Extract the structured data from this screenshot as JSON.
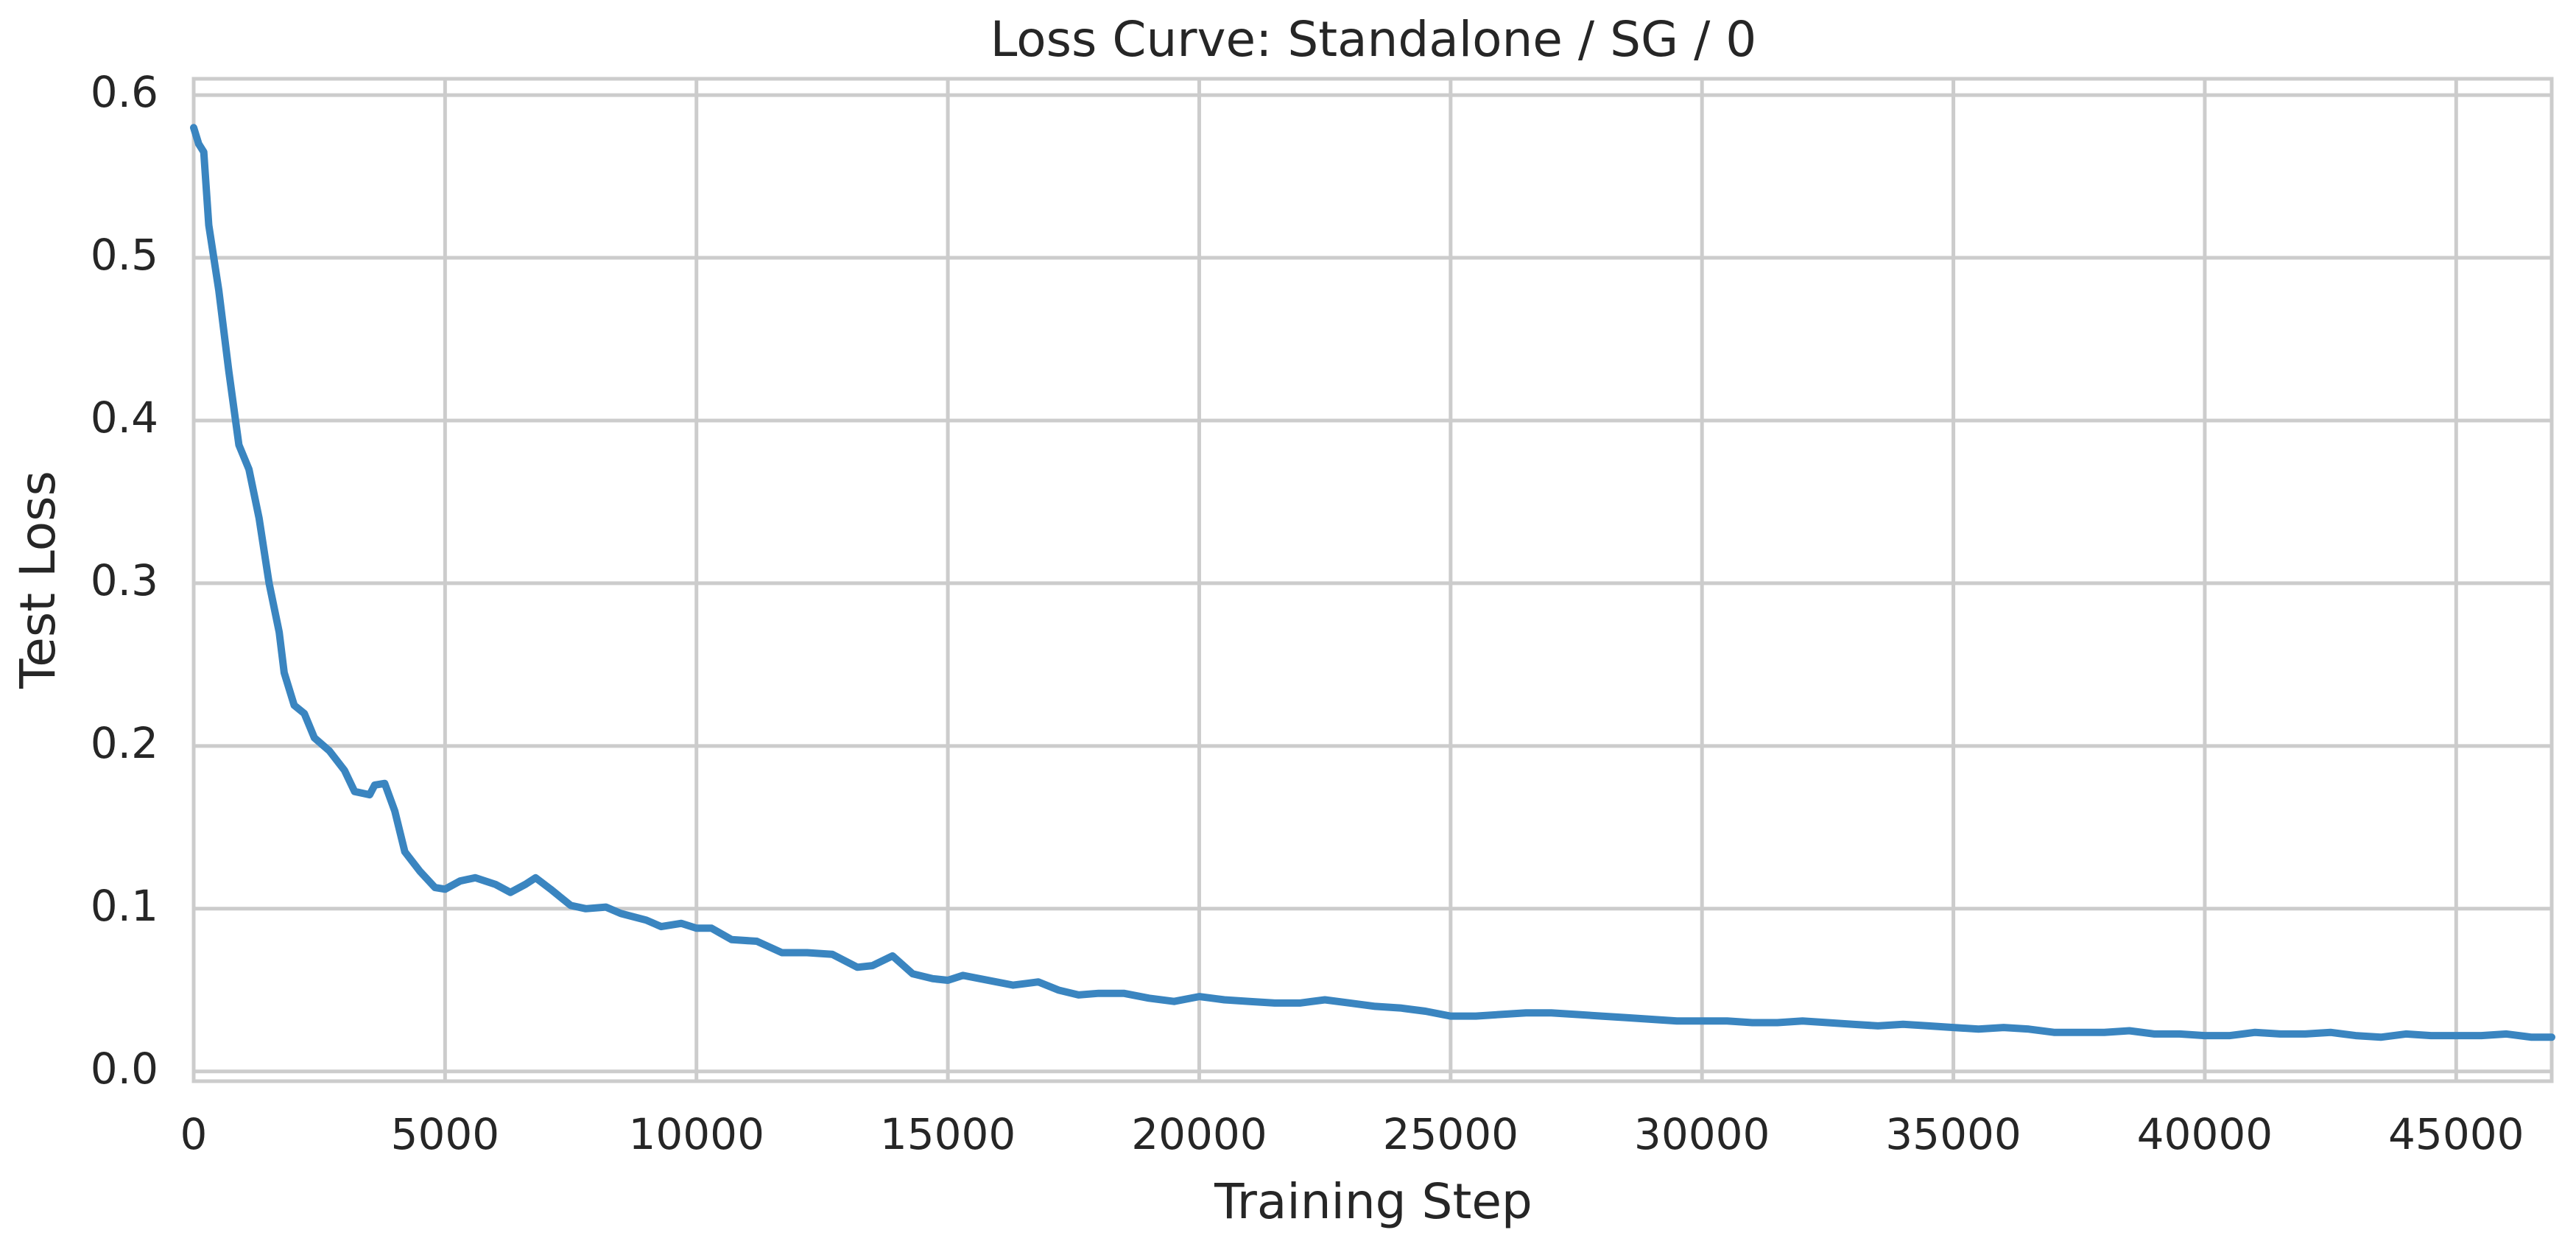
{
  "chart_data": {
    "type": "line",
    "title": "Loss Curve: Standalone / SG / 0",
    "xlabel": "Training Step",
    "ylabel": "Test Loss",
    "grid": true,
    "xlim": [
      0,
      46900
    ],
    "ylim": [
      -0.006,
      0.61
    ],
    "xticks": [
      0,
      5000,
      10000,
      15000,
      20000,
      25000,
      30000,
      35000,
      40000,
      45000
    ],
    "yticks": [
      {
        "value": 0,
        "label": "0.0"
      },
      0.1,
      0.2,
      0.3,
      0.4,
      0.5,
      0.6
    ],
    "x": [
      0,
      100,
      200,
      300,
      500,
      700,
      900,
      1100,
      1300,
      1500,
      1700,
      1800,
      2000,
      2200,
      2400,
      2700,
      3000,
      3200,
      3500,
      3600,
      3800,
      4000,
      4200,
      4500,
      4800,
      5000,
      5300,
      5600,
      6000,
      6300,
      6600,
      6800,
      7100,
      7500,
      7800,
      8200,
      8500,
      9000,
      9300,
      9700,
      10000,
      10300,
      10700,
      11200,
      11700,
      12200,
      12700,
      13200,
      13500,
      13900,
      14300,
      14700,
      15000,
      15300,
      15800,
      16300,
      16800,
      17200,
      17600,
      18000,
      18500,
      19000,
      19500,
      20000,
      20500,
      21000,
      21500,
      22000,
      22500,
      23000,
      23500,
      24000,
      24500,
      25000,
      25500,
      26000,
      26500,
      27000,
      27500,
      28000,
      28500,
      29000,
      29500,
      30000,
      30500,
      31000,
      31500,
      32000,
      32500,
      33000,
      33500,
      34000,
      34500,
      35000,
      35500,
      36000,
      36500,
      37000,
      37500,
      38000,
      38500,
      39000,
      39500,
      40000,
      40500,
      41000,
      41500,
      42000,
      42500,
      43000,
      43500,
      44000,
      44500,
      45000,
      45500,
      46000,
      46500,
      46900
    ],
    "series": [
      {
        "name": "Test Loss",
        "color": "#3a85c0",
        "values": [
          0.58,
          0.57,
          0.565,
          0.52,
          0.48,
          0.43,
          0.385,
          0.37,
          0.34,
          0.3,
          0.27,
          0.245,
          0.225,
          0.22,
          0.205,
          0.197,
          0.185,
          0.172,
          0.17,
          0.176,
          0.177,
          0.16,
          0.135,
          0.123,
          0.113,
          0.112,
          0.117,
          0.119,
          0.115,
          0.11,
          0.115,
          0.119,
          0.112,
          0.102,
          0.1,
          0.101,
          0.097,
          0.093,
          0.089,
          0.091,
          0.088,
          0.088,
          0.081,
          0.08,
          0.073,
          0.073,
          0.072,
          0.064,
          0.065,
          0.071,
          0.06,
          0.057,
          0.056,
          0.059,
          0.056,
          0.053,
          0.055,
          0.05,
          0.047,
          0.048,
          0.048,
          0.045,
          0.043,
          0.046,
          0.044,
          0.043,
          0.042,
          0.042,
          0.044,
          0.042,
          0.04,
          0.039,
          0.037,
          0.034,
          0.034,
          0.035,
          0.036,
          0.036,
          0.035,
          0.034,
          0.033,
          0.032,
          0.031,
          0.031,
          0.031,
          0.03,
          0.03,
          0.031,
          0.03,
          0.029,
          0.028,
          0.029,
          0.028,
          0.027,
          0.026,
          0.027,
          0.026,
          0.024,
          0.024,
          0.024,
          0.025,
          0.023,
          0.023,
          0.022,
          0.022,
          0.024,
          0.023,
          0.023,
          0.024,
          0.022,
          0.021,
          0.023,
          0.022,
          0.022,
          0.022,
          0.023,
          0.021,
          0.021
        ]
      }
    ]
  }
}
